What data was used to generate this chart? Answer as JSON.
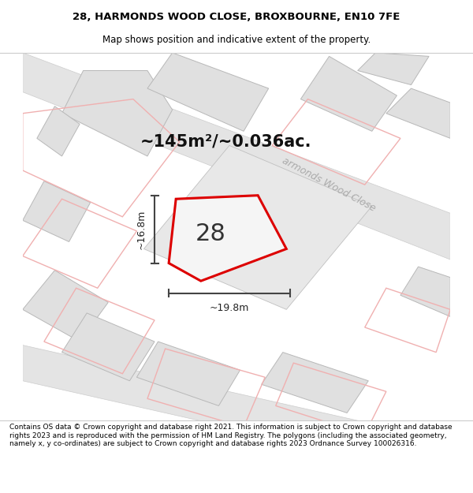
{
  "title_line1": "28, HARMONDS WOOD CLOSE, BROXBOURNE, EN10 7FE",
  "title_line2": "Map shows position and indicative extent of the property.",
  "footer_text": "Contains OS data © Crown copyright and database right 2021. This information is subject to Crown copyright and database rights 2023 and is reproduced with the permission of HM Land Registry. The polygons (including the associated geometry, namely x, y co-ordinates) are subject to Crown copyright and database rights 2023 Ordnance Survey 100026316.",
  "area_label": "~145m²/~0.036ac.",
  "number_label": "28",
  "dim_horiz": "~19.8m",
  "dim_vert": "~16.8m",
  "road_label": "armonds Wood Close",
  "map_bg": "#ffffff",
  "plot_fill": "#f0f0f0",
  "plot_edge_color": "#dd0000",
  "gray_fill": "#e0e0e0",
  "gray_edge": "#b8b8b8",
  "road_fill": "#e4e4e4",
  "road_edge": "#cccccc",
  "pink_edge_color": "#f0b0b0",
  "dim_line_color": "#444444",
  "road_label_color": "#aaaaaa"
}
